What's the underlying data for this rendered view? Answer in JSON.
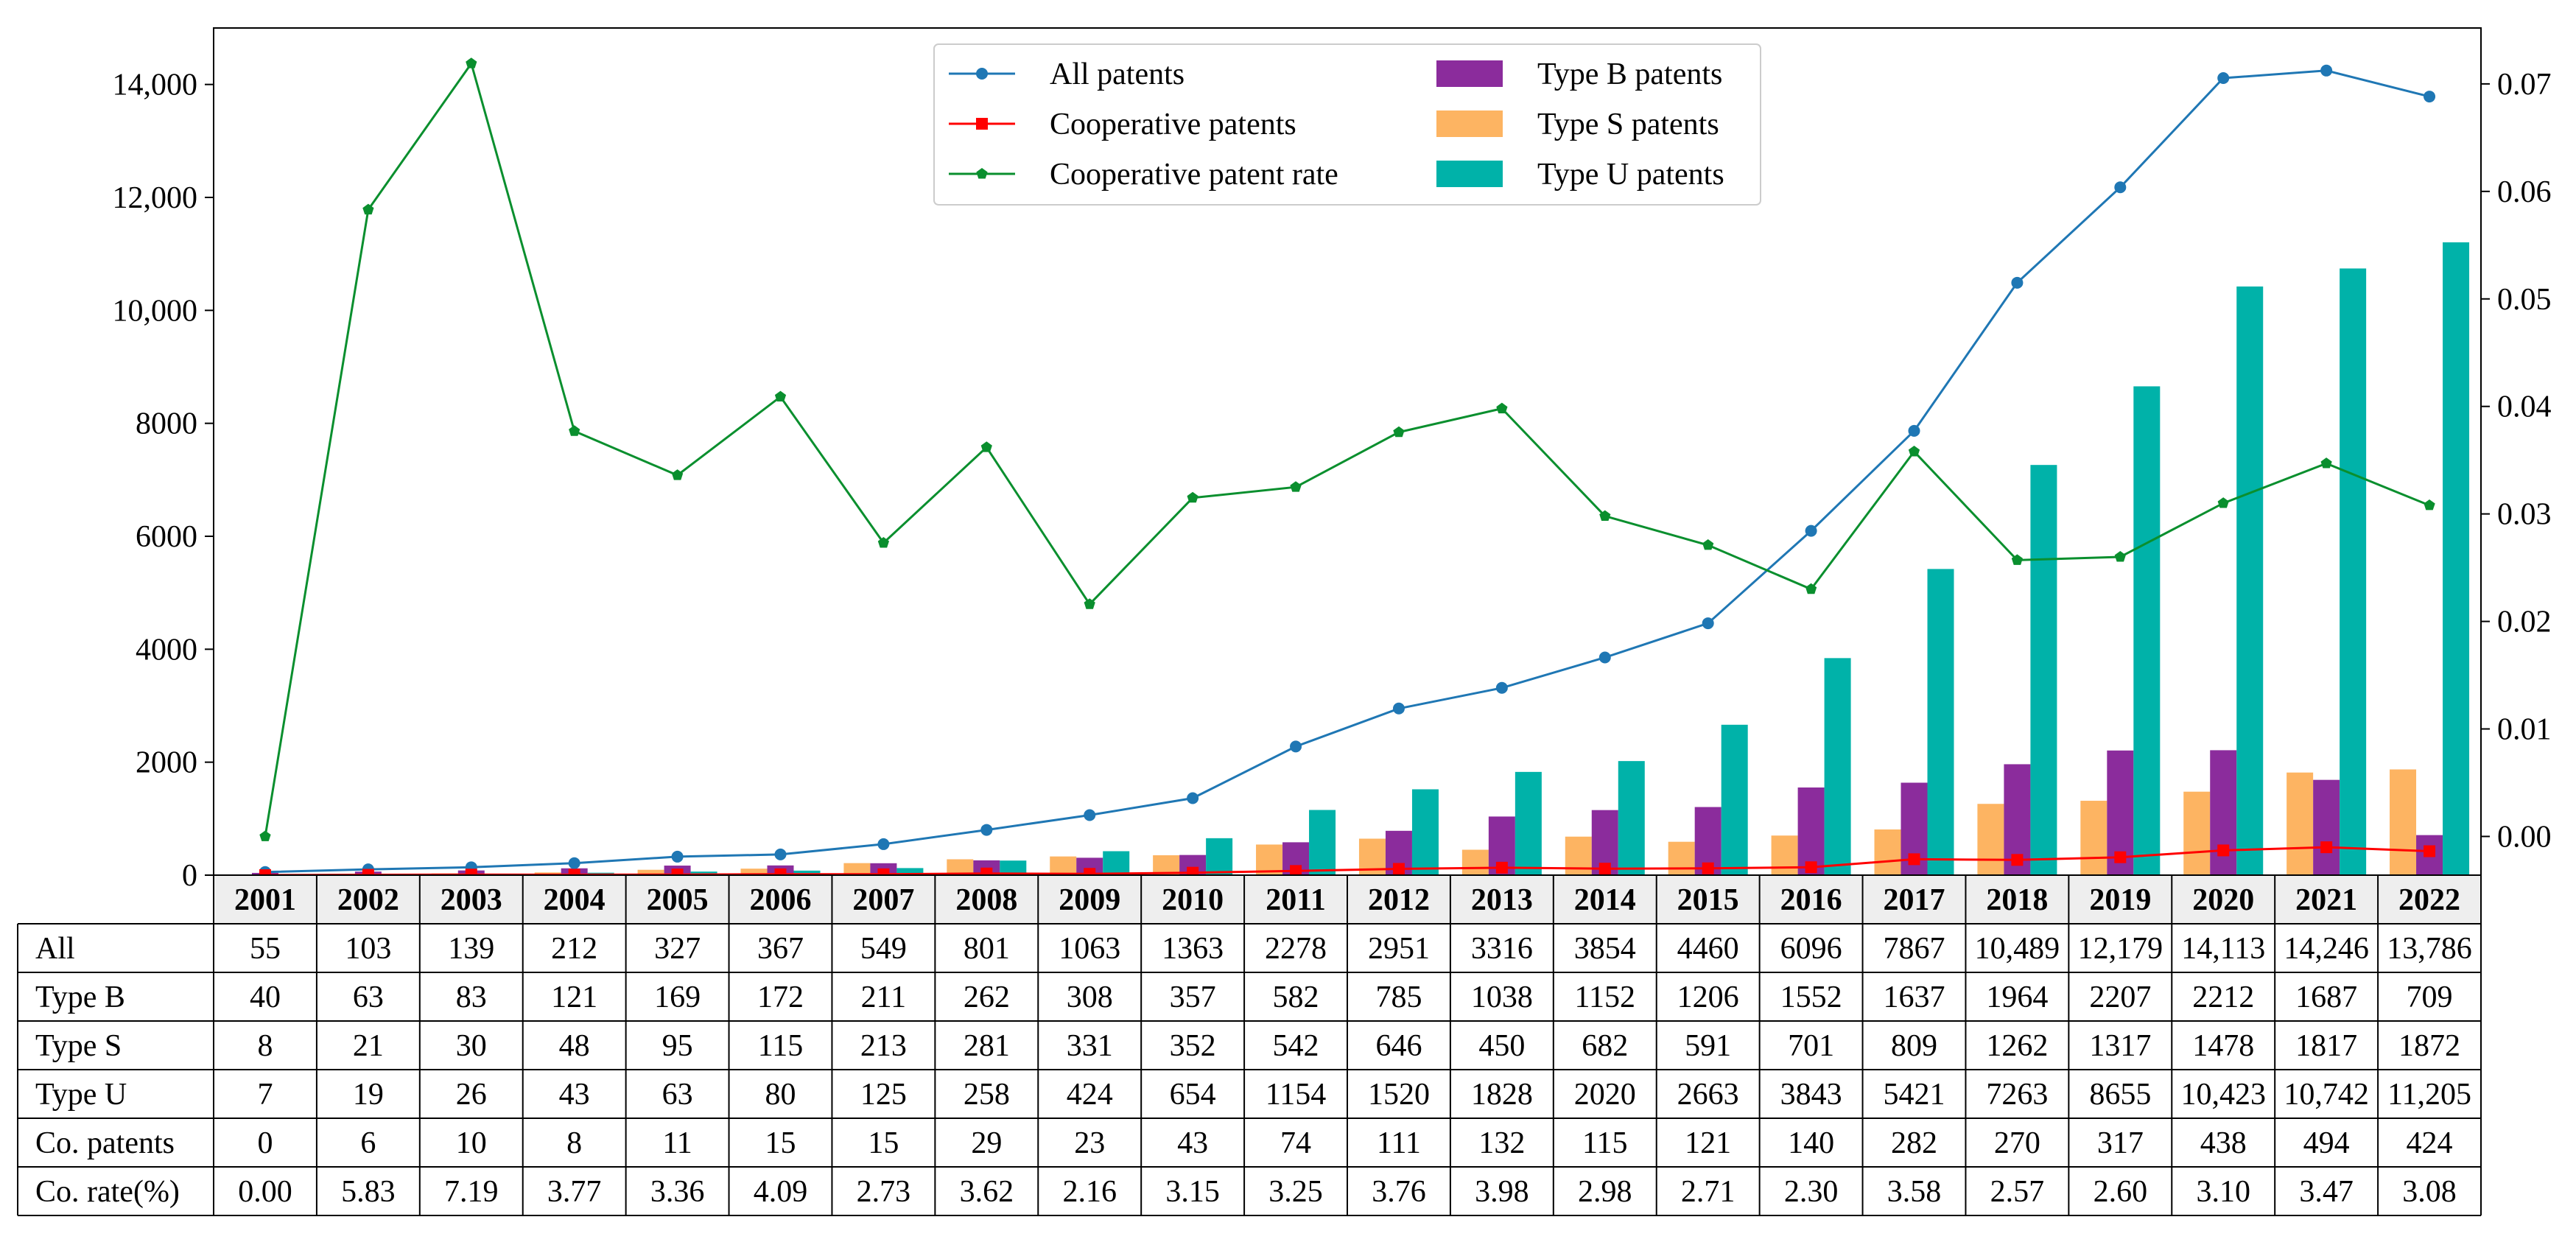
{
  "chart_data": {
    "type": "bar+line+table",
    "categories": [
      "2001",
      "2002",
      "2003",
      "2004",
      "2005",
      "2006",
      "2007",
      "2008",
      "2009",
      "2010",
      "2011",
      "2012",
      "2013",
      "2014",
      "2015",
      "2016",
      "2017",
      "2018",
      "2019",
      "2020",
      "2021",
      "2022"
    ],
    "left_axis": {
      "ylim": [
        0,
        15000
      ],
      "ticks": [
        0,
        2000,
        4000,
        6000,
        8000,
        10000,
        12000,
        14000
      ],
      "tick_labels": [
        "0",
        "2000",
        "4000",
        "6000",
        "8000",
        "10,000",
        "12,000",
        "14,000"
      ]
    },
    "right_axis": {
      "ylim": [
        -0.0036,
        0.0752
      ],
      "ticks": [
        0.0,
        0.01,
        0.02,
        0.03,
        0.04,
        0.05,
        0.06,
        0.07
      ],
      "tick_labels": [
        "0.00",
        "0.01",
        "0.02",
        "0.03",
        "0.04",
        "0.05",
        "0.06",
        "0.07"
      ]
    },
    "bar_series": [
      {
        "name": "Type S patents",
        "key": "type_s",
        "color": "#FDB462",
        "values": [
          8,
          21,
          30,
          48,
          95,
          115,
          213,
          281,
          331,
          352,
          542,
          646,
          450,
          682,
          591,
          701,
          809,
          1262,
          1317,
          1478,
          1817,
          1872
        ]
      },
      {
        "name": "Type B patents",
        "key": "type_b",
        "color": "#8B2C9C",
        "values": [
          40,
          63,
          83,
          121,
          169,
          172,
          211,
          262,
          308,
          357,
          582,
          785,
          1038,
          1152,
          1206,
          1552,
          1637,
          1964,
          2207,
          2212,
          1687,
          709
        ]
      },
      {
        "name": "Type U patents",
        "key": "type_u",
        "color": "#00B2A9",
        "values": [
          7,
          19,
          26,
          43,
          63,
          80,
          125,
          258,
          424,
          654,
          1154,
          1520,
          1828,
          2020,
          2663,
          3843,
          5421,
          7263,
          8655,
          10423,
          10742,
          11205
        ]
      }
    ],
    "line_series": [
      {
        "name": "All patents",
        "key": "all",
        "axis": "left",
        "color": "#1F77B4",
        "marker": "circle",
        "values": [
          55,
          103,
          139,
          212,
          327,
          367,
          549,
          801,
          1063,
          1363,
          2278,
          2951,
          3316,
          3854,
          4460,
          6096,
          7867,
          10489,
          12179,
          14113,
          14246,
          13786
        ]
      },
      {
        "name": "Cooperative patents",
        "key": "coop",
        "axis": "left",
        "color": "#FF0000",
        "marker": "square",
        "values": [
          0,
          6,
          10,
          8,
          11,
          15,
          15,
          29,
          23,
          43,
          74,
          111,
          132,
          115,
          121,
          140,
          282,
          270,
          317,
          438,
          494,
          424
        ]
      },
      {
        "name": "Cooperative patent rate",
        "key": "rate",
        "axis": "right",
        "color": "#0A8F2E",
        "marker": "pentagon",
        "values": [
          0.0,
          0.0583,
          0.0719,
          0.0377,
          0.0336,
          0.0409,
          0.0273,
          0.0362,
          0.0216,
          0.0315,
          0.0325,
          0.0376,
          0.0398,
          0.0298,
          0.0271,
          0.023,
          0.0358,
          0.0257,
          0.026,
          0.031,
          0.0347,
          0.0308
        ]
      }
    ],
    "legend": {
      "position": "top-center",
      "items": [
        {
          "label": "All patents",
          "kind": "line",
          "color": "#1F77B4",
          "marker": "circle"
        },
        {
          "label": "Type B patents",
          "kind": "bar",
          "color": "#8B2C9C"
        },
        {
          "label": "Cooperative patents",
          "kind": "line",
          "color": "#FF0000",
          "marker": "square"
        },
        {
          "label": "Type S patents",
          "kind": "bar",
          "color": "#FDB462"
        },
        {
          "label": "Cooperative patent rate",
          "kind": "line",
          "color": "#0A8F2E",
          "marker": "pentagon"
        },
        {
          "label": "Type U patents",
          "kind": "bar",
          "color": "#00B2A9"
        }
      ]
    },
    "table": {
      "header_row": [
        "2001",
        "2002",
        "2003",
        "2004",
        "2005",
        "2006",
        "2007",
        "2008",
        "2009",
        "2010",
        "2011",
        "2012",
        "2013",
        "2014",
        "2015",
        "2016",
        "2017",
        "2018",
        "2019",
        "2020",
        "2021",
        "2022"
      ],
      "rows": [
        {
          "label": "All",
          "cells": [
            "55",
            "103",
            "139",
            "212",
            "327",
            "367",
            "549",
            "801",
            "1063",
            "1363",
            "2278",
            "2951",
            "3316",
            "3854",
            "4460",
            "6096",
            "7867",
            "10,489",
            "12,179",
            "14,113",
            "14,246",
            "13,786"
          ]
        },
        {
          "label": "Type B",
          "cells": [
            "40",
            "63",
            "83",
            "121",
            "169",
            "172",
            "211",
            "262",
            "308",
            "357",
            "582",
            "785",
            "1038",
            "1152",
            "1206",
            "1552",
            "1637",
            "1964",
            "2207",
            "2212",
            "1687",
            "709"
          ]
        },
        {
          "label": "Type S",
          "cells": [
            "8",
            "21",
            "30",
            "48",
            "95",
            "115",
            "213",
            "281",
            "331",
            "352",
            "542",
            "646",
            "450",
            "682",
            "591",
            "701",
            "809",
            "1262",
            "1317",
            "1478",
            "1817",
            "1872"
          ]
        },
        {
          "label": "Type U",
          "cells": [
            "7",
            "19",
            "26",
            "43",
            "63",
            "80",
            "125",
            "258",
            "424",
            "654",
            "1154",
            "1520",
            "1828",
            "2020",
            "2663",
            "3843",
            "5421",
            "7263",
            "8655",
            "10,423",
            "10,742",
            "11,205"
          ]
        },
        {
          "label": "Co. patents",
          "cells": [
            "0",
            "6",
            "10",
            "8",
            "11",
            "15",
            "15",
            "29",
            "23",
            "43",
            "74",
            "111",
            "132",
            "115",
            "121",
            "140",
            "282",
            "270",
            "317",
            "438",
            "494",
            "424"
          ]
        },
        {
          "label": "Co. rate(%)",
          "cells": [
            "0.00",
            "5.83",
            "7.19",
            "3.77",
            "3.36",
            "4.09",
            "2.73",
            "3.62",
            "2.16",
            "3.15",
            "3.25",
            "3.76",
            "3.98",
            "2.98",
            "2.71",
            "2.30",
            "3.58",
            "2.57",
            "2.60",
            "3.10",
            "3.47",
            "3.08"
          ]
        }
      ]
    }
  }
}
